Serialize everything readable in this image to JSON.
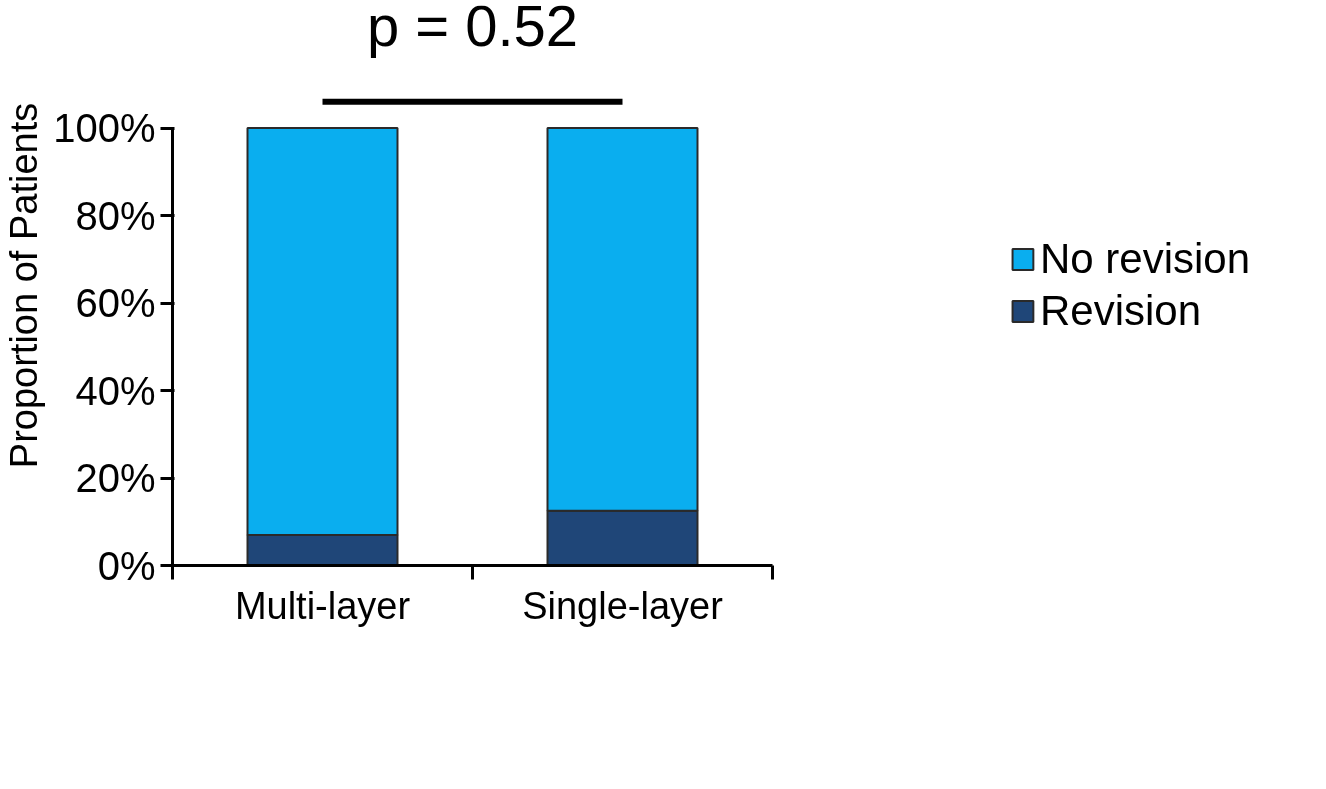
{
  "chart_data": {
    "type": "bar",
    "stacked": true,
    "ylabel": "Proportion of Patients",
    "categories": [
      "Multi-layer",
      "Single-layer"
    ],
    "series": [
      {
        "name": "Revision",
        "color": "#1f4678",
        "values": [
          7,
          12.5
        ]
      },
      {
        "name": "No revision",
        "color": "#0aaeef",
        "values": [
          93,
          87.5
        ]
      }
    ],
    "ylim": [
      0,
      100
    ],
    "yticks": [
      {
        "value": 0,
        "label": "0%"
      },
      {
        "value": 20,
        "label": "20%"
      },
      {
        "value": 40,
        "label": "40%"
      },
      {
        "value": 60,
        "label": "60%"
      },
      {
        "value": 80,
        "label": "80%"
      },
      {
        "value": 100,
        "label": "100%"
      }
    ],
    "annotations": [
      "p = 0.52"
    ],
    "legend": "right",
    "grid": false
  }
}
